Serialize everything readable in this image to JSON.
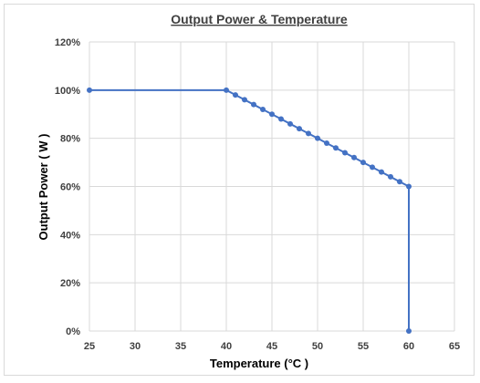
{
  "chart_data": {
    "type": "line",
    "title": "Output Power & Temperature",
    "xlabel": "Temperature (°C )",
    "ylabel": "Output Power ( W )",
    "xlim": [
      25,
      65
    ],
    "ylim": [
      0,
      120
    ],
    "x_ticks": [
      "25",
      "30",
      "35",
      "40",
      "45",
      "50",
      "55",
      "60",
      "65"
    ],
    "y_ticks": [
      "0%",
      "20%",
      "40%",
      "60%",
      "80%",
      "100%",
      "120%"
    ],
    "grid": true,
    "legend": "none",
    "color": "#4472C4",
    "series": [
      {
        "x": [
          25,
          40,
          41,
          42,
          43,
          44,
          45,
          46,
          47,
          48,
          49,
          50,
          51,
          52,
          53,
          54,
          55,
          56,
          57,
          58,
          59,
          60,
          60
        ],
        "y": [
          100,
          100,
          98,
          96,
          94,
          92,
          90,
          88,
          86,
          84,
          82,
          80,
          78,
          76,
          74,
          72,
          70,
          68,
          66,
          64,
          62,
          60,
          0
        ]
      }
    ]
  }
}
